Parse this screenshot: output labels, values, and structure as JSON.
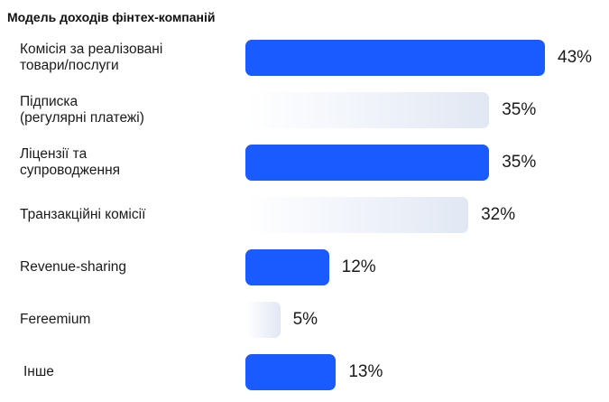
{
  "chart_data": {
    "type": "bar",
    "orientation": "horizontal",
    "title": "Модель доходів фінтех-компаній",
    "categories": [
      "Комісія за реалізовані\nтовари/послуги",
      "Підписка\n(регулярні платежі)",
      "Ліцензії та\nсупроводження",
      "Транзакційні комісії",
      "Revenue-sharing",
      "Fereemium",
      "Інше"
    ],
    "values": [
      43,
      35,
      35,
      32,
      12,
      5,
      13
    ],
    "value_labels": [
      "43%",
      "35%",
      "35%",
      "32%",
      "12%",
      "5%",
      "13%"
    ],
    "styles": [
      "solid",
      "gradient",
      "solid",
      "gradient",
      "solid",
      "gradient",
      "solid"
    ],
    "colors": {
      "solid": "#1a5bff",
      "gradient_end": "#e1e7f3"
    },
    "xlabel": "",
    "ylabel": "",
    "xlim": [
      0,
      43
    ],
    "grid": false,
    "legend": "none"
  }
}
